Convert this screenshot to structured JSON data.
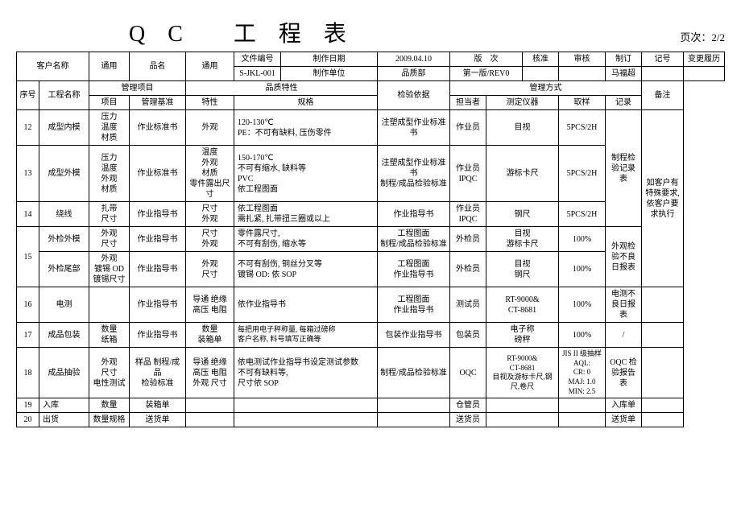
{
  "title": "QC 工程表",
  "page_label": "页次：",
  "page_value": "2/2",
  "hdr": {
    "customer_label": "客户名称",
    "customer_value": "通用",
    "product_label": "品名",
    "product_value": "通用",
    "docno_label": "文件编号",
    "docno_value": "S-JKL-001",
    "makedate_label": "制作日期",
    "makedate_value": "2009.04.10",
    "makedept_label": "制作单位",
    "makedept_value": "品质部",
    "rev_label": "版　次",
    "rev_value": "第一版/REV0",
    "approve_label": "核准",
    "review_label": "审核",
    "make_label": "制订",
    "make_value": "马福超",
    "mark_label": "记号",
    "changehist_label": "变更履历"
  },
  "cols": {
    "seq": "序号",
    "procname": "工程名称",
    "mgmtitem": "管理项目",
    "mgmtitem_sub1": "项目",
    "mgmtitem_sub2": "管理基准",
    "qualchar": "品质特性",
    "qualchar_sub1": "特性",
    "qualchar_sub2": "规格",
    "inspbasis": "检验依据",
    "mgmtmethod": "管理方式",
    "mgmtmethod_sub1": "担当者",
    "mgmtmethod_sub2": "测定仪器",
    "mgmtmethod_sub3": "取样",
    "mgmtmethod_sub4": "记录",
    "remark": "备注"
  },
  "r12": {
    "seq": "12",
    "name": "成型内模",
    "item": "压力\n温度\n材质",
    "std": "作业标准书",
    "char": "外观",
    "spec": "120-130℃\nPE：不可有缺料, 压伤零件",
    "basis": "注塑成型作业标准书",
    "who": "作业员",
    "inst": "目视",
    "samp": "5PCS/2H",
    "rec": ""
  },
  "r13": {
    "seq": "13",
    "name": "成型外模",
    "item": "压力\n温度\n外观\n材质",
    "std": "作业标准书",
    "char": "温度\n外观\n材质\n零件露出尺寸",
    "spec": "150-170℃\n不可有缩水, 缺料等\nPVC\n依工程图面",
    "basis": "注塑成型作业标准书\n制程/成品检验标准",
    "who": "作业员\nIPQC",
    "inst": "游标卡尺",
    "samp": "5PCS/2H",
    "rec": "制程检验记录表"
  },
  "r14": {
    "seq": "14",
    "name": "绕线",
    "item": "扎带\n尺寸",
    "std": "作业指导书",
    "char": "尺寸\n外观",
    "spec": "依工程图面\n需扎紧, 扎带扭三圈或以上",
    "basis": "作业指导书",
    "who": "作业员\nIPQC",
    "inst": "钢尺",
    "samp": "5PCS/2H",
    "rec": ""
  },
  "r15": {
    "seq": "15",
    "a_name": "外检外模",
    "a_item": "外观\n尺寸",
    "a_std": "作业指导书",
    "a_char": "尺寸\n外观",
    "a_spec": "零件露尺寸,\n不可有刮伤, 缩水等",
    "a_basis": "工程图面\n制程/成品检验标准",
    "a_who": "外检员",
    "a_inst": "目视\n游标卡尺",
    "a_samp": "100%",
    "b_name": "外检尾部",
    "b_item": "外观\n镀锡 OD\n镀锡尺寸",
    "b_std": "作业指导书",
    "b_char": "外观\n尺寸",
    "b_spec": "不可有刮伤, 铜丝分叉等\n镀锡 OD: 依 SOP",
    "b_basis": "工程图面\n作业指导书",
    "b_who": "外检员",
    "b_inst": "目视\n钢尺",
    "b_samp": "100%",
    "rec": "外观检验不良日报表",
    "remark": "如客户有特殊要求, 依客户要求执行"
  },
  "r16": {
    "seq": "16",
    "name": "电测",
    "item": "",
    "std": "作业指导书",
    "char": "导通 绝缘\n高压 电阻",
    "spec": "依作业指导书",
    "basis": "工程图面\n作业指导书",
    "who": "测试员",
    "inst": "RT-9000&\nCT-8681",
    "samp": "100%",
    "rec": "电测不良日报表"
  },
  "r17": {
    "seq": "17",
    "name": "成品包装",
    "item": "数量\n纸箱",
    "std": "作业指导书",
    "char": "数量\n装箱单",
    "spec": "每把用电子秤称量, 每箱过磅称\n客户名称, 料号填写正确等",
    "basis": "包装作业指导书",
    "who": "包装员",
    "inst": "电子称\n磅秤",
    "samp": "100%",
    "rec": "/"
  },
  "r18": {
    "seq": "18",
    "name": "成品抽验",
    "item": "外观\n尺寸\n电性测试",
    "std": "样品 制程/成品\n检验标准",
    "char": "导通 绝缘\n高压 电阻\n外观 尺寸",
    "spec": "依电测试作业指导书设定测试参数\n不可有缺料等,\n尺寸依 SOP",
    "basis": "制程/成品检验标准",
    "who": "OQC",
    "inst": "RT-9000&\nCT-8681\n目视及游标卡尺,钢尺,卷尺",
    "samp": "JIS II 级抽样 AQL:\nCR: 0\nMAJ: 1.0\nMIN: 2.5",
    "rec": "OQC 检验报告表"
  },
  "r19": {
    "seq": "19",
    "name": "入库",
    "item": "数量",
    "std": "装箱单",
    "who": "仓管员",
    "rec": "入库单"
  },
  "r20": {
    "seq": "20",
    "name": "出货",
    "item": "数量规格",
    "std": "送货单",
    "who": "送货员",
    "rec": "送货单"
  }
}
